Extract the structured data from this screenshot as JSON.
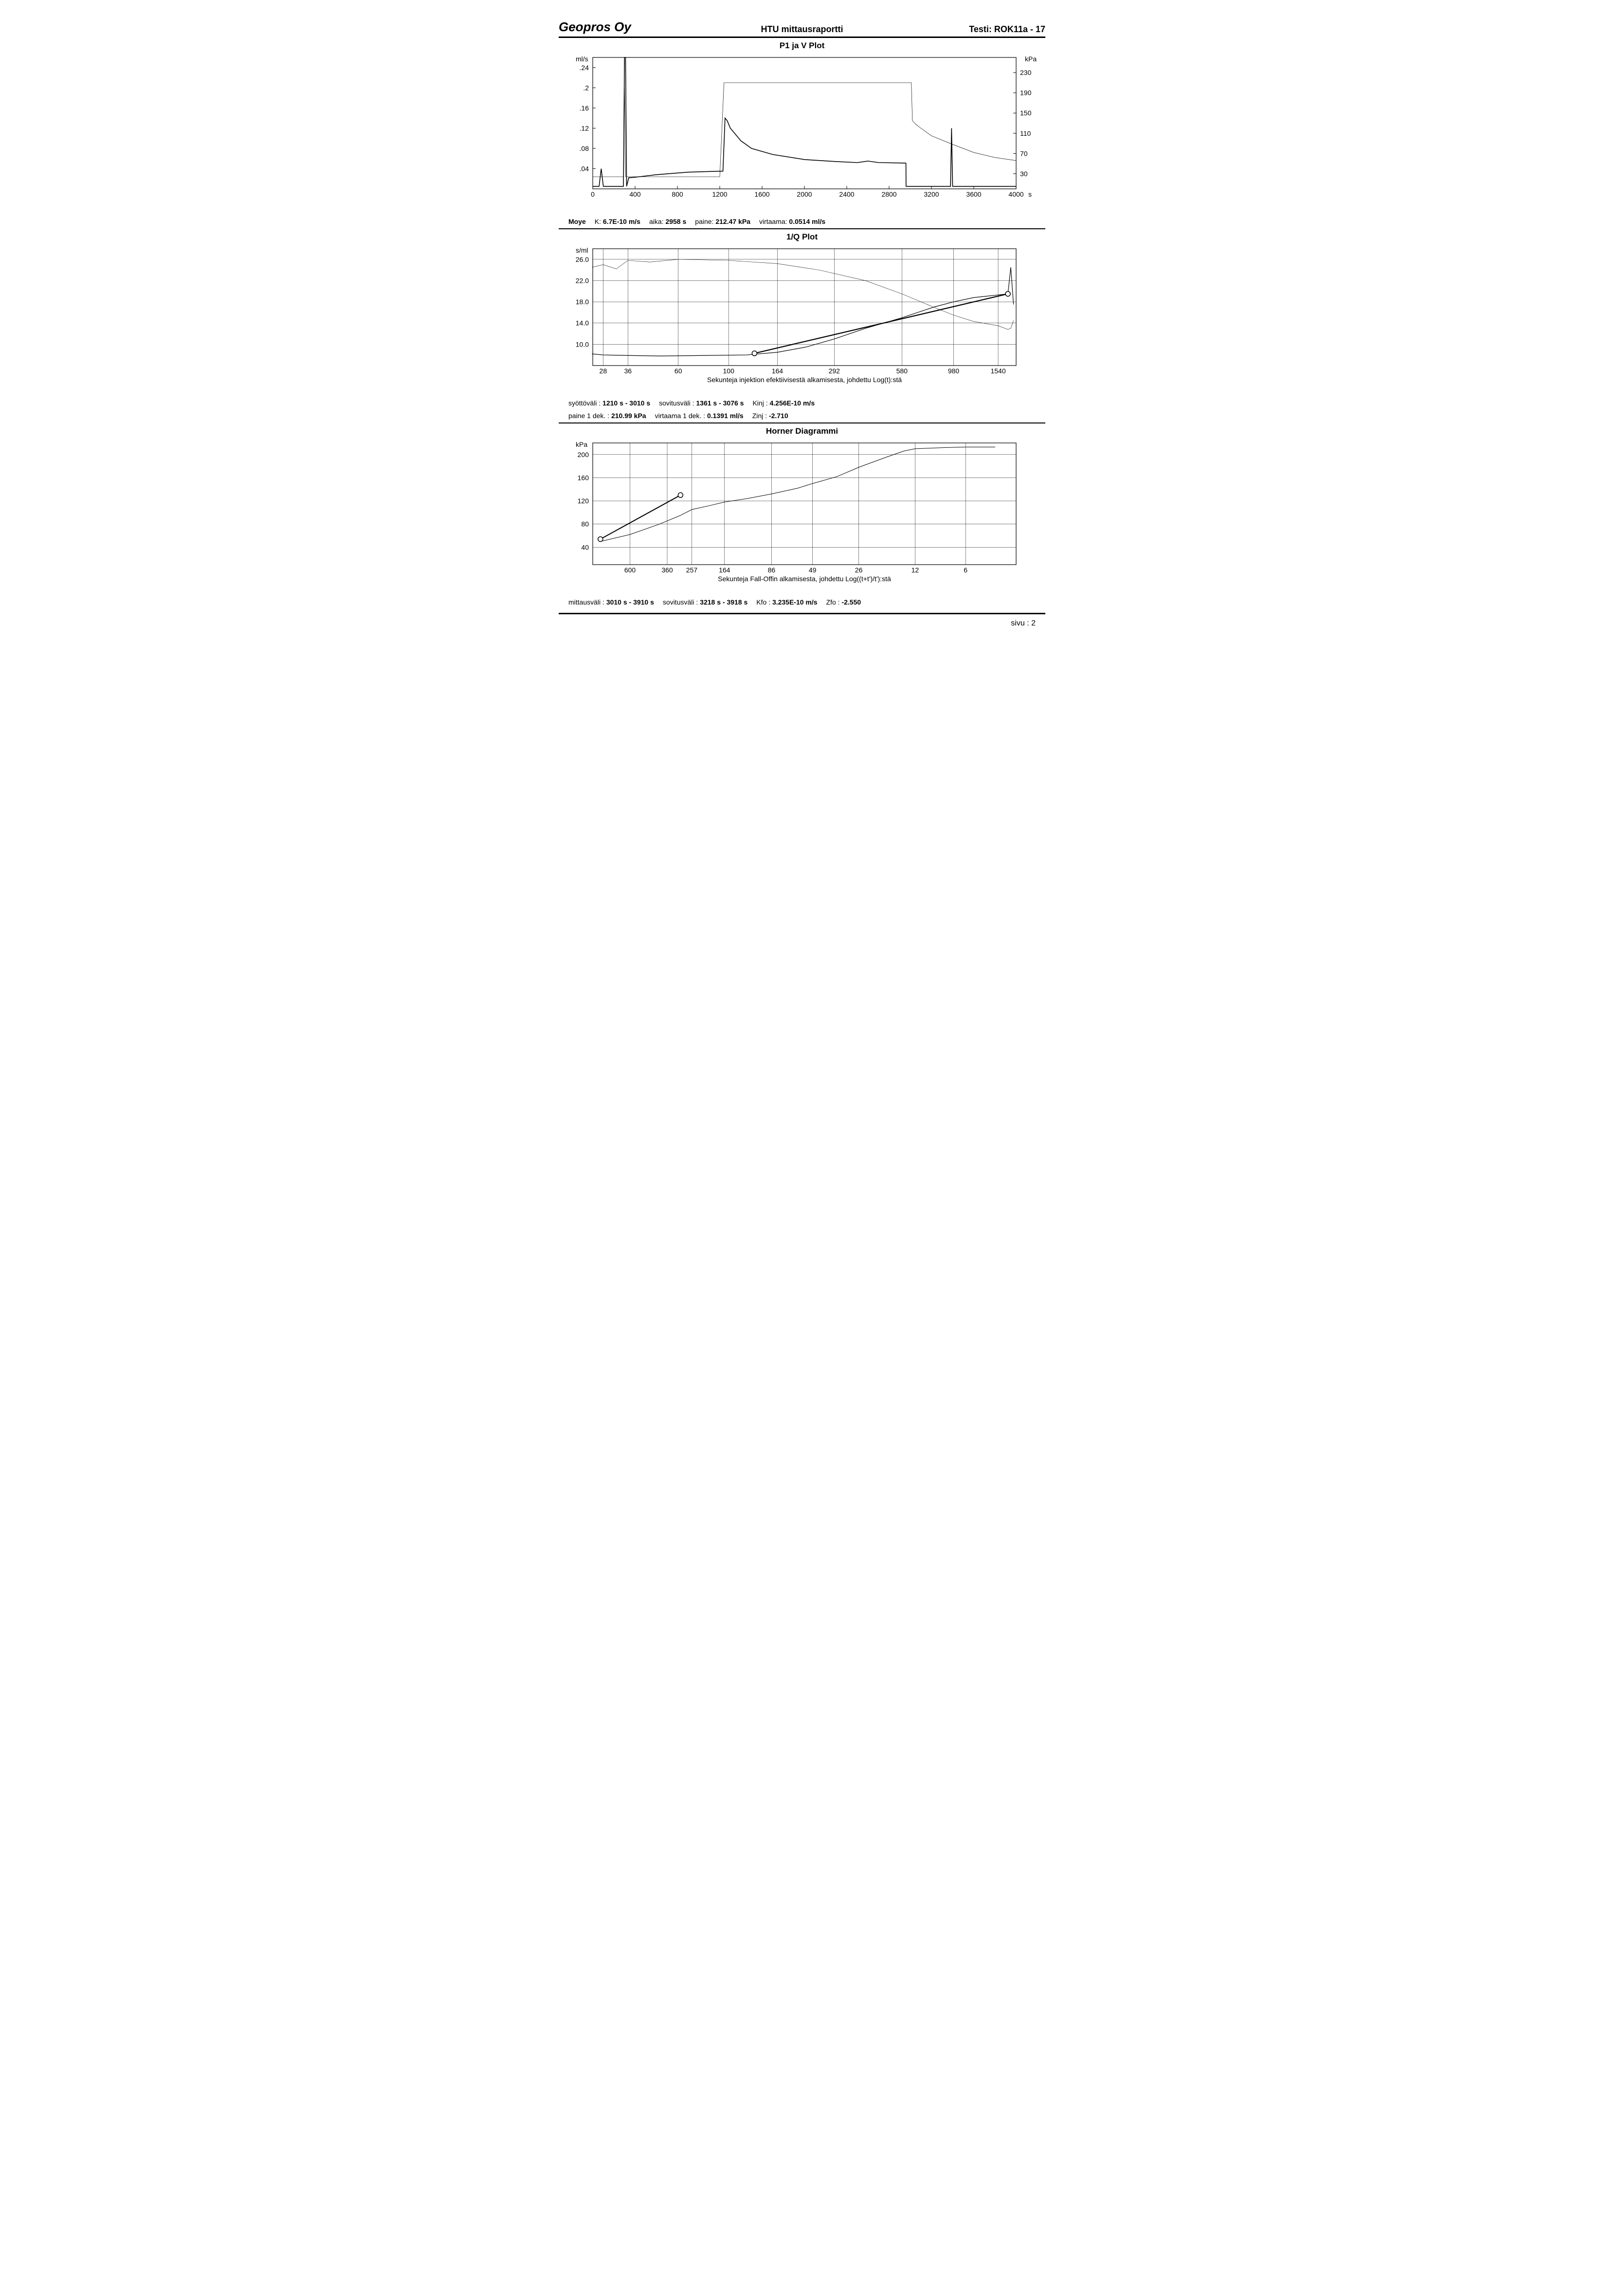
{
  "header": {
    "company": "Geopros Oy",
    "report_title": "HTU mittausraportti",
    "test_label": "Testi:",
    "test_id": "ROK11a - 17"
  },
  "footer": {
    "page_label": "sivu :",
    "page_num": "2"
  },
  "chart1": {
    "title": "P1 ja V Plot",
    "type": "line-dual-axis",
    "y_left_label": "ml/s",
    "y_right_label": "kPa",
    "x_unit": "s",
    "xlim": [
      0,
      4000
    ],
    "xtick_step": 400,
    "xticks": [
      0,
      400,
      800,
      1200,
      1600,
      2000,
      2400,
      2800,
      3200,
      3600,
      4000
    ],
    "y_left_lim": [
      0,
      0.26
    ],
    "y_left_ticks": [
      0.04,
      0.08,
      0.12,
      0.16,
      0.2,
      0.24
    ],
    "y_left_tick_labels": [
      ".04",
      ".08",
      ".12",
      ".16",
      ".2",
      ".24"
    ],
    "y_right_lim": [
      0,
      260
    ],
    "y_right_ticks": [
      30,
      70,
      110,
      150,
      190,
      230
    ],
    "line_color": "#000000",
    "line_width_heavy": 1.6,
    "line_width_light": 0.7,
    "background_color": "#ffffff",
    "axis_color": "#000000",
    "flow_series": [
      [
        0,
        0.005
      ],
      [
        60,
        0.005
      ],
      [
        80,
        0.04
      ],
      [
        100,
        0.005
      ],
      [
        290,
        0.005
      ],
      [
        300,
        0.26
      ],
      [
        310,
        0.26
      ],
      [
        320,
        0.005
      ],
      [
        340,
        0.022
      ],
      [
        400,
        0.023
      ],
      [
        600,
        0.028
      ],
      [
        900,
        0.033
      ],
      [
        1200,
        0.035
      ],
      [
        1230,
        0.035
      ],
      [
        1250,
        0.14
      ],
      [
        1270,
        0.135
      ],
      [
        1300,
        0.12
      ],
      [
        1400,
        0.095
      ],
      [
        1500,
        0.08
      ],
      [
        1700,
        0.068
      ],
      [
        2000,
        0.058
      ],
      [
        2300,
        0.054
      ],
      [
        2500,
        0.052
      ],
      [
        2600,
        0.055
      ],
      [
        2700,
        0.052
      ],
      [
        2958,
        0.051
      ],
      [
        2959,
        0.05
      ],
      [
        2960,
        0.005
      ],
      [
        3000,
        0.005
      ],
      [
        3380,
        0.005
      ],
      [
        3390,
        0.12
      ],
      [
        3400,
        0.005
      ],
      [
        4000,
        0.005
      ]
    ],
    "pressure_series": [
      [
        0,
        24
      ],
      [
        200,
        24
      ],
      [
        290,
        24
      ],
      [
        300,
        200
      ],
      [
        310,
        24
      ],
      [
        1200,
        24
      ],
      [
        1240,
        210
      ],
      [
        3000,
        210
      ],
      [
        3010,
        210
      ],
      [
        3020,
        135
      ],
      [
        3050,
        128
      ],
      [
        3100,
        120
      ],
      [
        3200,
        105
      ],
      [
        3400,
        88
      ],
      [
        3600,
        72
      ],
      [
        3800,
        62
      ],
      [
        4000,
        56
      ]
    ],
    "params": [
      {
        "label": "Moye",
        "value": ""
      },
      {
        "label": "K:",
        "value": "6.7E-10 m/s"
      },
      {
        "label": "aika:",
        "value": "2958 s"
      },
      {
        "label": "paine:",
        "value": "212.47 kPa"
      },
      {
        "label": "virtaama:",
        "value": "0.0514 ml/s"
      }
    ]
  },
  "chart2": {
    "title": "1/Q Plot",
    "type": "line-log-x",
    "y_label": "s/ml",
    "ylim": [
      6,
      28
    ],
    "yticks": [
      10.0,
      14.0,
      18.0,
      22.0,
      26.0
    ],
    "xticks_log": [
      28,
      36,
      60,
      100,
      164,
      292,
      580,
      980,
      1540
    ],
    "x_axis_caption": "Sekunteja injektion efektiivisestä alkamisesta, johdettu Log(t):stä",
    "line_color": "#000000",
    "fit_line_width": 2.2,
    "data_line_width": 1.2,
    "aux_line_width": 0.6,
    "marker_style": "circle",
    "marker_size": 5,
    "background_color": "#ffffff",
    "grid_color": "#000000",
    "data_series": [
      [
        25,
        8.2
      ],
      [
        28,
        8.0
      ],
      [
        36,
        7.9
      ],
      [
        50,
        7.8
      ],
      [
        80,
        7.9
      ],
      [
        120,
        8.0
      ],
      [
        164,
        8.5
      ],
      [
        220,
        9.5
      ],
      [
        292,
        11.0
      ],
      [
        400,
        13.0
      ],
      [
        580,
        15.0
      ],
      [
        800,
        17.0
      ],
      [
        980,
        18.0
      ],
      [
        1200,
        18.8
      ],
      [
        1540,
        19.3
      ],
      [
        1700,
        19.5
      ],
      [
        1750,
        24.5
      ],
      [
        1800,
        17.5
      ]
    ],
    "aux_series": [
      [
        25,
        24.5
      ],
      [
        28,
        25.0
      ],
      [
        32,
        24.2
      ],
      [
        36,
        25.8
      ],
      [
        45,
        25.5
      ],
      [
        60,
        26.0
      ],
      [
        100,
        25.8
      ],
      [
        164,
        25.2
      ],
      [
        250,
        24.0
      ],
      [
        400,
        22.0
      ],
      [
        580,
        19.5
      ],
      [
        800,
        17.0
      ],
      [
        980,
        15.5
      ],
      [
        1200,
        14.3
      ],
      [
        1540,
        13.5
      ],
      [
        1700,
        12.8
      ],
      [
        1750,
        13.0
      ],
      [
        1800,
        14.5
      ]
    ],
    "fit_line": [
      [
        130,
        8.3
      ],
      [
        1700,
        19.5
      ]
    ],
    "fit_markers": [
      [
        130,
        8.3
      ],
      [
        1700,
        19.5
      ]
    ],
    "params_row1": [
      {
        "label": "syöttöväli :",
        "value": "1210 s -  3010 s"
      },
      {
        "label": "sovitusväli :",
        "value": "1361 s  -   3076 s"
      },
      {
        "label": "Kinj :",
        "value": "4.256E-10 m/s"
      }
    ],
    "params_row2": [
      {
        "label": "paine 1 dek. :",
        "value": "210.99 kPa"
      },
      {
        "label": "virtaama 1 dek. :",
        "value": "0.1391 ml/s"
      },
      {
        "label": "Zinj :",
        "value": "-2.710"
      }
    ]
  },
  "chart3": {
    "title": "Horner Diagrammi",
    "type": "line-log-x-reversed",
    "y_label": "kPa",
    "ylim": [
      10,
      220
    ],
    "yticks": [
      40,
      80,
      120,
      160,
      200
    ],
    "xticks_log": [
      600,
      360,
      257,
      164,
      86,
      49,
      26,
      12,
      6
    ],
    "x_axis_caption": "Sekunteja Fall-Offin alkamisesta, johdettu Log((t+t')/t'):stä",
    "line_color": "#000000",
    "fit_line_width": 2.0,
    "data_line_width": 1.0,
    "marker_style": "circle",
    "marker_size": 5,
    "background_color": "#ffffff",
    "data_series": [
      [
        900,
        50
      ],
      [
        600,
        62
      ],
      [
        400,
        80
      ],
      [
        300,
        95
      ],
      [
        257,
        105
      ],
      [
        200,
        112
      ],
      [
        164,
        118
      ],
      [
        120,
        124
      ],
      [
        86,
        132
      ],
      [
        60,
        142
      ],
      [
        49,
        150
      ],
      [
        35,
        162
      ],
      [
        26,
        178
      ],
      [
        18,
        195
      ],
      [
        14,
        206
      ],
      [
        12,
        210
      ],
      [
        8,
        212
      ],
      [
        6,
        213
      ],
      [
        4,
        213
      ]
    ],
    "fit_line": [
      [
        900,
        54
      ],
      [
        300,
        130
      ]
    ],
    "fit_markers": [
      [
        900,
        54
      ],
      [
        300,
        130
      ]
    ],
    "params": [
      {
        "label": "mittausväli :",
        "value": "3010 s -  3910 s"
      },
      {
        "label": "sovitusväli :",
        "value": "3218 s -  3918 s"
      },
      {
        "label": "Kfo :",
        "value": "3.235E-10 m/s"
      },
      {
        "label": "Zfo :",
        "value": "-2.550"
      }
    ]
  }
}
